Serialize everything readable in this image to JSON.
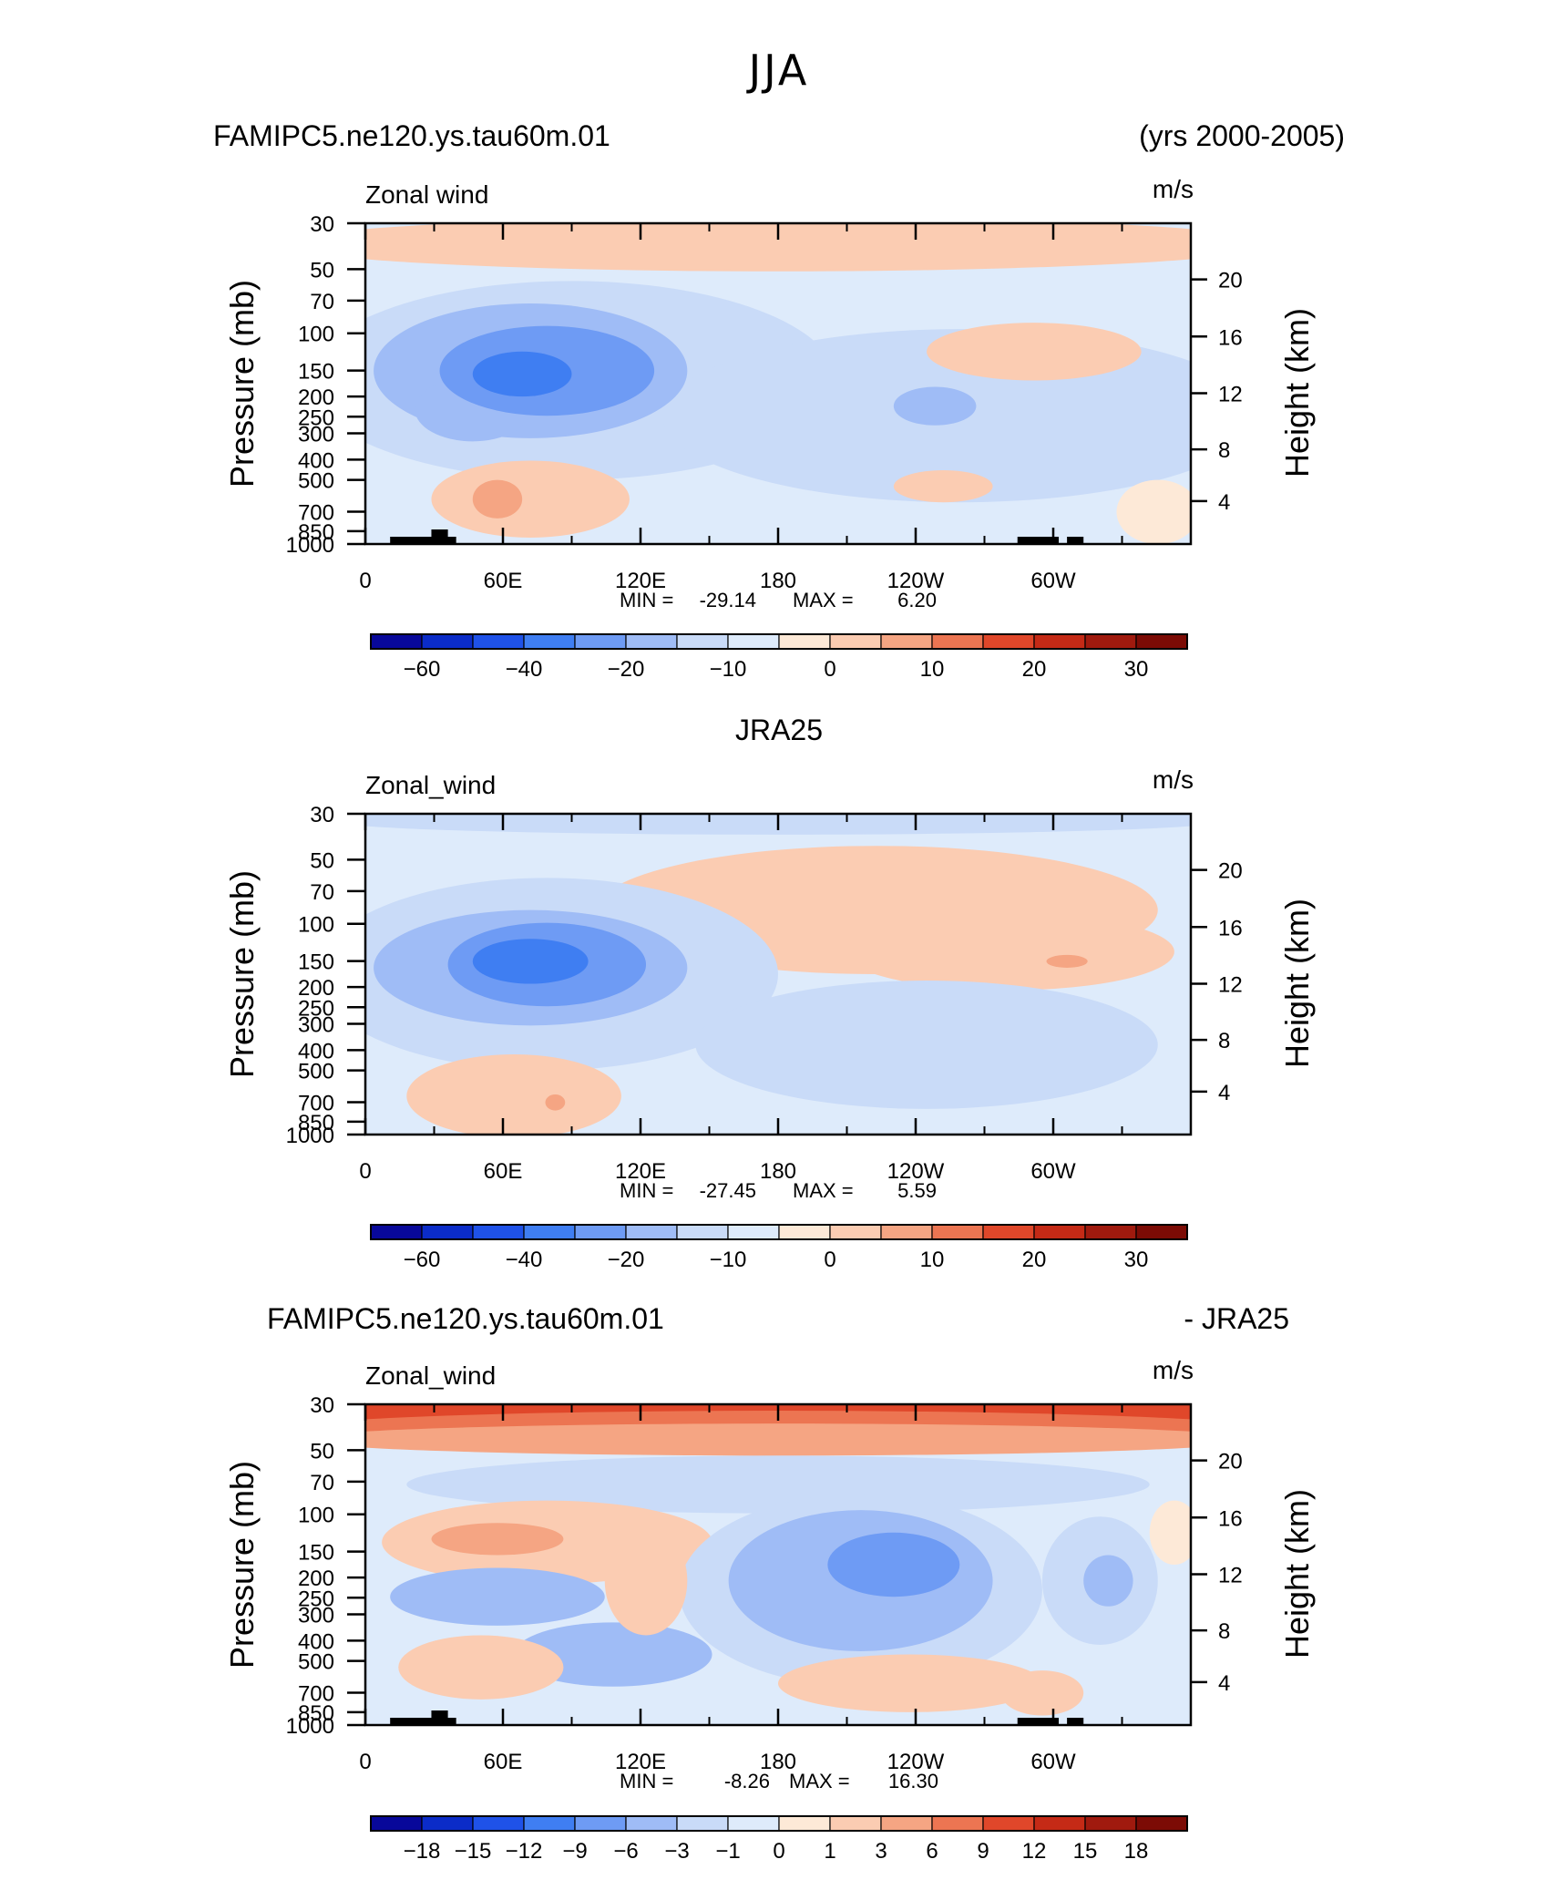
{
  "page_title": "JJA",
  "chart_data": [
    {
      "type": "heatmap",
      "title_left": "FAMIPC5.ne120.ys.tau60m.01",
      "title_right": "(yrs 2000-2005)",
      "variable": "Zonal wind",
      "units": "m/s",
      "ylabel": "Pressure  (mb)",
      "ylabel_right": "Height  (km)",
      "x_ticks": [
        "0",
        "60E",
        "120E",
        "180",
        "120W",
        "60W"
      ],
      "y_ticks": [
        "30",
        "50",
        "70",
        "100",
        "150",
        "200",
        "250",
        "300",
        "400",
        "500",
        "700",
        "850",
        "1000"
      ],
      "height_ticks": [
        "20",
        "16",
        "12",
        "8",
        "4"
      ],
      "min_label": "MIN =",
      "min": "-29.14",
      "max_label": "MAX =",
      "max": "6.20",
      "colorbar_labels": [
        "-60",
        "-40",
        "-20",
        "-10",
        "0",
        "10",
        "20",
        "30"
      ],
      "colorbar_colors": [
        "#08089a",
        "#0b2cc8",
        "#1f52e8",
        "#3f7ef2",
        "#6e9bf4",
        "#9fbcf6",
        "#c9dbf8",
        "#deebfb",
        "#fde9d7",
        "#fbccb2",
        "#f5a583",
        "#ec7552",
        "#e0472a",
        "#c52a16",
        "#a01a0e",
        "#7c0b05"
      ]
    },
    {
      "type": "heatmap",
      "title_center": "JRA25",
      "variable": "Zonal_wind",
      "units": "m/s",
      "ylabel": "Pressure  (mb)",
      "ylabel_right": "Height  (km)",
      "x_ticks": [
        "0",
        "60E",
        "120E",
        "180",
        "120W",
        "60W"
      ],
      "y_ticks": [
        "30",
        "50",
        "70",
        "100",
        "150",
        "200",
        "250",
        "300",
        "400",
        "500",
        "700",
        "850",
        "1000"
      ],
      "height_ticks": [
        "20",
        "16",
        "12",
        "8",
        "4"
      ],
      "min_label": "MIN =",
      "min": "-27.45",
      "max_label": "MAX =",
      "max": "5.59",
      "colorbar_labels": [
        "-60",
        "-40",
        "-20",
        "-10",
        "0",
        "10",
        "20",
        "30"
      ],
      "colorbar_colors": [
        "#08089a",
        "#0b2cc8",
        "#1f52e8",
        "#3f7ef2",
        "#6e9bf4",
        "#9fbcf6",
        "#c9dbf8",
        "#deebfb",
        "#fde9d7",
        "#fbccb2",
        "#f5a583",
        "#ec7552",
        "#e0472a",
        "#c52a16",
        "#a01a0e",
        "#7c0b05"
      ]
    },
    {
      "type": "heatmap",
      "title_left": "FAMIPC5.ne120.ys.tau60m.01",
      "title_right": "- JRA25",
      "variable": "Zonal_wind",
      "units": "m/s",
      "ylabel": "Pressure  (mb)",
      "ylabel_right": "Height  (km)",
      "x_ticks": [
        "0",
        "60E",
        "120E",
        "180",
        "120W",
        "60W"
      ],
      "y_ticks": [
        "30",
        "50",
        "70",
        "100",
        "150",
        "200",
        "250",
        "300",
        "400",
        "500",
        "700",
        "850",
        "1000"
      ],
      "height_ticks": [
        "20",
        "16",
        "12",
        "8",
        "4"
      ],
      "min_label": "MIN =",
      "min": "-8.26",
      "max_label": "MAX =",
      "max": "16.30",
      "colorbar_labels": [
        "-18",
        "-15",
        "-12",
        "-9",
        "-6",
        "-3",
        "-1",
        "0",
        "1",
        "3",
        "6",
        "9",
        "12",
        "15",
        "18"
      ],
      "colorbar_colors": [
        "#08089a",
        "#0b2cc8",
        "#1f52e8",
        "#3f7ef2",
        "#6e9bf4",
        "#9fbcf6",
        "#c9dbf8",
        "#deebfb",
        "#fde9d7",
        "#fbccb2",
        "#f5a583",
        "#ec7552",
        "#e0472a",
        "#c52a16",
        "#a01a0e",
        "#7c0b05"
      ]
    }
  ]
}
